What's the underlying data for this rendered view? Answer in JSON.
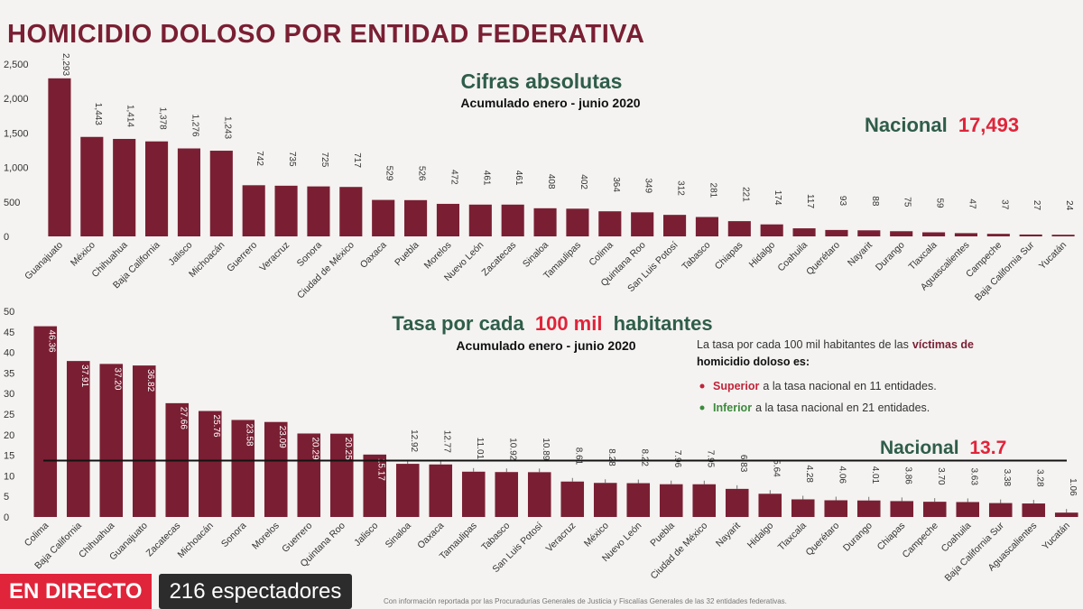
{
  "title": "HOMICIDIO DOLOSO POR ENTIDAD FEDERATIVA",
  "colors": {
    "bar": "#7a1f33",
    "accent": "#e0243a",
    "green": "#2f5d4a",
    "text": "#222222"
  },
  "chart_data": [
    {
      "type": "bar",
      "title": "Cifras absolutas",
      "subtitle": "Acumulado enero - junio 2020",
      "national_label": "Nacional",
      "national_value": "17,493",
      "ylim": [
        0,
        2500
      ],
      "yticks": [
        "0",
        "500",
        "1,000",
        "1,500",
        "2,000",
        "2,500"
      ],
      "categories": [
        "Guanajuato",
        "México",
        "Chihuahua",
        "Baja California",
        "Jalisco",
        "Michoacán",
        "Guerrero",
        "Veracruz",
        "Sonora",
        "Ciudad de México",
        "Oaxaca",
        "Puebla",
        "Morelos",
        "Nuevo León",
        "Zacatecas",
        "Sinaloa",
        "Tamaulipas",
        "Colima",
        "Quintana Roo",
        "San Luis Potosí",
        "Tabasco",
        "Chiapas",
        "Hidalgo",
        "Coahuila",
        "Querétaro",
        "Nayarit",
        "Durango",
        "Tlaxcala",
        "Aguascalientes",
        "Campeche",
        "Baja California Sur",
        "Yucatán"
      ],
      "values": [
        2293,
        1443,
        1414,
        1378,
        1276,
        1243,
        742,
        735,
        725,
        717,
        529,
        526,
        472,
        461,
        461,
        408,
        402,
        364,
        349,
        312,
        281,
        221,
        174,
        117,
        93,
        88,
        75,
        59,
        47,
        37,
        27,
        24
      ],
      "labels": [
        "2,293",
        "1,443",
        "1,414",
        "1,378",
        "1,276",
        "1,243",
        "742",
        "735",
        "725",
        "717",
        "529",
        "526",
        "472",
        "461",
        "461",
        "408",
        "402",
        "364",
        "349",
        "312",
        "281",
        "221",
        "174",
        "117",
        "93",
        "88",
        "75",
        "59",
        "47",
        "37",
        "27",
        "24"
      ]
    },
    {
      "type": "bar",
      "title_pre": "Tasa por cada",
      "title_highlight": "100 mil",
      "title_post": "habitantes",
      "subtitle": "Acumulado enero - junio 2020",
      "national_label": "Nacional",
      "national_value": "13.7",
      "national_line": 13.7,
      "ylim": [
        0,
        50
      ],
      "yticks": [
        "0",
        "5",
        "10",
        "15",
        "20",
        "25",
        "30",
        "35",
        "40",
        "45",
        "50"
      ],
      "categories": [
        "Colima",
        "Baja California",
        "Chihuahua",
        "Guanajuato",
        "Zacatecas",
        "Michoacán",
        "Sonora",
        "Morelos",
        "Guerrero",
        "Quintana Roo",
        "Jalisco",
        "Sinaloa",
        "Oaxaca",
        "Tamaulipas",
        "Tabasco",
        "San Luis Potosí",
        "Veracruz",
        "México",
        "Nuevo León",
        "Puebla",
        "Ciudad de México",
        "Nayarit",
        "Hidalgo",
        "Tlaxcala",
        "Querétaro",
        "Durango",
        "Chiapas",
        "Campeche",
        "Coahuila",
        "Baja California Sur",
        "Aguascalientes",
        "Yucatán"
      ],
      "values": [
        46.36,
        37.91,
        37.2,
        36.82,
        27.66,
        25.76,
        23.58,
        23.09,
        20.29,
        20.25,
        15.17,
        12.92,
        12.77,
        11.01,
        10.92,
        10.89,
        8.61,
        8.28,
        8.22,
        7.96,
        7.95,
        6.83,
        5.64,
        4.28,
        4.06,
        4.01,
        3.86,
        3.7,
        3.63,
        3.38,
        3.28,
        1.06
      ],
      "labels": [
        "46.36",
        "37.91",
        "37.20",
        "36.82",
        "27.66",
        "25.76",
        "23.58",
        "23.09",
        "20.29",
        "20.25",
        "15.17",
        "12.92",
        "12.77",
        "11.01",
        "10.92",
        "10.89",
        "8.61",
        "8.28",
        "8.22",
        "7.96",
        "7.95",
        "6.83",
        "5.64",
        "4.28",
        "4.06",
        "4.01",
        "3.86",
        "3.70",
        "3.63",
        "3.38",
        "3.28",
        "1.06"
      ],
      "note": {
        "line1_pre": "La tasa por cada 100 mil habitantes de las",
        "line1_bold": "víctimas de",
        "line2": "homicidio doloso es:",
        "bullet1_bold": "Superior",
        "bullet1_rest": "a la tasa nacional en 11 entidades.",
        "bullet2_bold": "Inferior",
        "bullet2_rest": "a la tasa nacional en 21 entidades."
      }
    }
  ],
  "live": {
    "badge": "EN DIRECTO",
    "viewers": "216 espectadores"
  },
  "footnote": "Con información reportada por las Procuradurías Generales de Justicia y Fiscalías Generales de las 32 entidades federativas."
}
